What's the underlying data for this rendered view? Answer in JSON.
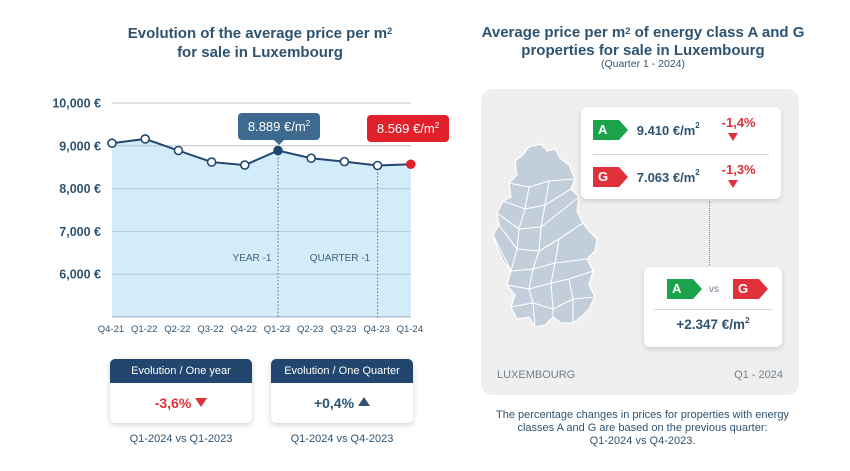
{
  "left_chart": {
    "title_line1_pre": "Evolution of the average price per m",
    "title_line1_sup": "2",
    "title_line2": "for sale in Luxembourg",
    "chart_data": {
      "type": "area",
      "categories": [
        "Q4-21",
        "Q1-22",
        "Q2-22",
        "Q3-22",
        "Q4-22",
        "Q1-23",
        "Q2-23",
        "Q3-23",
        "Q4-23",
        "Q1-24"
      ],
      "values": [
        9060,
        9160,
        8890,
        8620,
        8550,
        8889,
        8710,
        8630,
        8540,
        8569
      ],
      "yticks": [
        "6,000 €",
        "7,000 €",
        "8,000 €",
        "9,000 €",
        "10,000 €"
      ],
      "ytick_values": [
        6000,
        7000,
        8000,
        9000,
        10000
      ],
      "ylim": [
        5000,
        10000
      ],
      "grid": true,
      "line_color": "#22476f",
      "fill_color": "#d3ecfa",
      "highlight_year_color": "#22476f",
      "highlight_last_color": "#e0202a",
      "annotations": [
        {
          "label_pre": "8.889 €/m",
          "label_sup": "2",
          "category": "Q1-23",
          "color": "#3d6a8e"
        },
        {
          "label_pre": "8.569 €/m",
          "label_sup": "2",
          "category": "Q1-24",
          "color": "#e0202a"
        }
      ],
      "markers": [
        {
          "label": "YEAR -1",
          "category": "Q1-23"
        },
        {
          "label": "QUARTER -1",
          "category": "Q4-23"
        }
      ]
    }
  },
  "evolution_cards": [
    {
      "header": "Evolution / One year",
      "value": "-3,6%",
      "direction": "down",
      "caption": "Q1-2024 vs Q1-2023"
    },
    {
      "header": "Evolution / One Quarter",
      "value": "+0,4%",
      "direction": "up",
      "caption": "Q1-2024 vs Q4-2023"
    }
  ],
  "right_panel": {
    "title_line1_pre": "Average price per m",
    "title_line1_sup": "2",
    "title_line1_post": " of energy class A and G",
    "title_line2": "properties for sale in Luxembourg",
    "subtitle": "(Quarter 1 - 2024)",
    "class_a": {
      "badge": "A",
      "price_pre": "9.410 €/m",
      "price_sup": "2",
      "change": "-1,4%"
    },
    "class_g": {
      "badge": "G",
      "price_pre": "7.063 €/m",
      "price_sup": "2",
      "change": "-1,3%"
    },
    "vs": {
      "left": "A",
      "text": "vs",
      "right": "G",
      "diff_pre": "+2.347 €/m",
      "diff_sup": "2"
    },
    "map_label": "LUXEMBOURG",
    "period_label": "Q1 - 2024",
    "colors": {
      "class_a": "#1aa34a",
      "class_g": "#e0313b",
      "map_fill": "#c2ced9",
      "map_stroke": "#ffffff"
    },
    "note_line1": "The percentage changes in prices for properties with energy",
    "note_line2": "classes A and G are based on the previous quarter:",
    "note_line3": "Q1-2024 vs Q4-2023."
  }
}
